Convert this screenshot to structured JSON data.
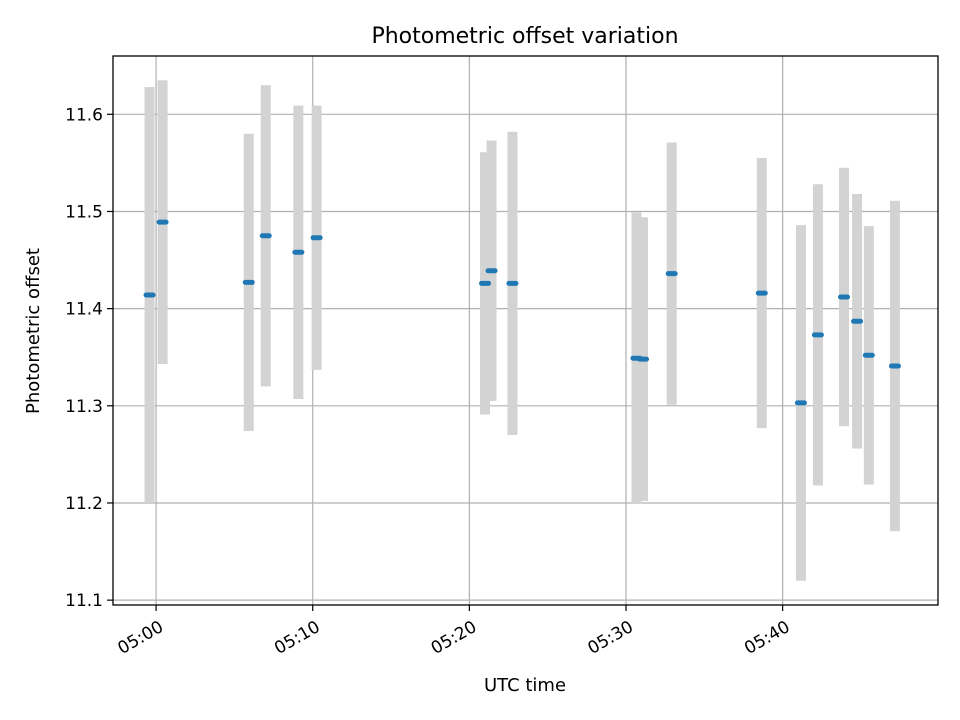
{
  "chart_data": {
    "type": "scatter",
    "title": "Photometric offset variation",
    "xlabel": "UTC time",
    "ylabel": "Photometric offset",
    "x_tick_labels": [
      "05:00",
      "05:10",
      "05:20",
      "05:30",
      "05:40"
    ],
    "x_tick_times": [
      "05:00",
      "05:10",
      "05:20",
      "05:30",
      "05:40"
    ],
    "y_tick_labels": [
      "11.1",
      "11.2",
      "11.3",
      "11.4",
      "11.5",
      "11.6"
    ],
    "y_ticks": [
      11.1,
      11.2,
      11.3,
      11.4,
      11.5,
      11.6
    ],
    "xlim": [
      "04:57:15",
      "05:49:55"
    ],
    "ylim": [
      11.095,
      11.66
    ],
    "grid": true,
    "colors": {
      "points": "#1f77b4",
      "error_bars": "#d3d3d3",
      "grid": "#b0b0b0"
    },
    "series": [
      {
        "points": [
          {
            "t": "04:59:35",
            "y": 11.414,
            "err": 0.214
          },
          {
            "t": "05:00:25",
            "y": 11.489,
            "err": 0.146
          },
          {
            "t": "05:05:55",
            "y": 11.427,
            "err": 0.153
          },
          {
            "t": "05:07:00",
            "y": 11.475,
            "err": 0.155
          },
          {
            "t": "05:09:05",
            "y": 11.458,
            "err": 0.151
          },
          {
            "t": "05:10:15",
            "y": 11.473,
            "err": 0.136
          },
          {
            "t": "05:21:00",
            "y": 11.426,
            "err": 0.135
          },
          {
            "t": "05:21:25",
            "y": 11.439,
            "err": 0.134
          },
          {
            "t": "05:22:45",
            "y": 11.426,
            "err": 0.156
          },
          {
            "t": "05:30:40",
            "y": 11.349,
            "err": 0.15
          },
          {
            "t": "05:31:05",
            "y": 11.348,
            "err": 0.146
          },
          {
            "t": "05:32:55",
            "y": 11.436,
            "err": 0.135
          },
          {
            "t": "05:38:40",
            "y": 11.416,
            "err": 0.139
          },
          {
            "t": "05:41:10",
            "y": 11.303,
            "err": 0.183
          },
          {
            "t": "05:42:15",
            "y": 11.373,
            "err": 0.155
          },
          {
            "t": "05:43:55",
            "y": 11.412,
            "err": 0.133
          },
          {
            "t": "05:44:45",
            "y": 11.387,
            "err": 0.131
          },
          {
            "t": "05:45:30",
            "y": 11.352,
            "err": 0.133
          },
          {
            "t": "05:47:10",
            "y": 11.341,
            "err": 0.17
          }
        ]
      }
    ]
  }
}
